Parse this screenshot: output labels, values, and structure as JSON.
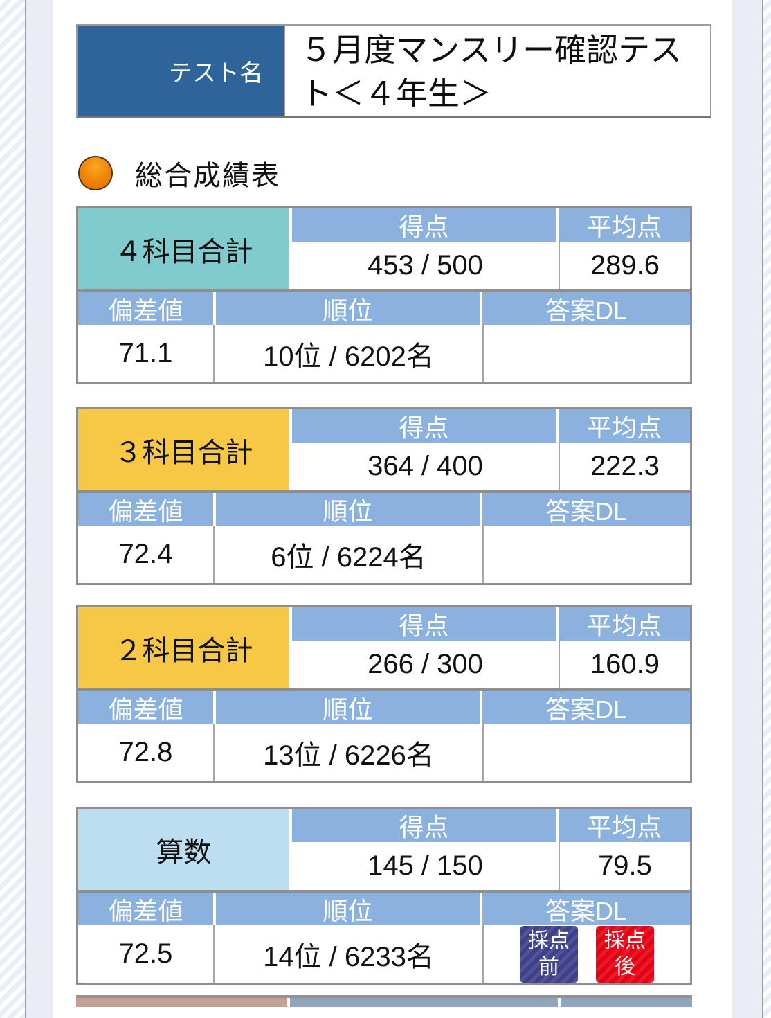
{
  "header": {
    "test_name_label": "テスト名",
    "test_name": "５月度マンスリー確認テスト＜４年生＞",
    "section_title": "総合成績表"
  },
  "labels": {
    "score": "得点",
    "average": "平均点",
    "deviation": "偏差値",
    "rank": "順位",
    "answer_dl": "答案DL"
  },
  "tables": [
    {
      "subject": "４科目合計",
      "subject_color": "#7fcbce",
      "score": "453 / 500",
      "average": "289.6",
      "deviation": "71.1",
      "rank": "10位 / 6202名",
      "buttons": []
    },
    {
      "subject": "３科目合計",
      "subject_color": "#f6c845",
      "score": "364 / 400",
      "average": "222.3",
      "deviation": "72.4",
      "rank": "6位 / 6224名",
      "buttons": []
    },
    {
      "subject": "２科目合計",
      "subject_color": "#f6c845",
      "score": "266 / 300",
      "average": "160.9",
      "deviation": "72.8",
      "rank": "13位 / 6226名",
      "buttons": []
    },
    {
      "subject": "算数",
      "subject_color": "#bdddf0",
      "score": "145 / 150",
      "average": "79.5",
      "deviation": "72.5",
      "rank": "14位 / 6233名",
      "buttons": [
        {
          "label": "採点前",
          "color": "#3f3f8c"
        },
        {
          "label": "採点後",
          "color": "#e60012"
        }
      ]
    }
  ],
  "colors": {
    "test_label_blue": "#2f649b",
    "table_header_blue": "#8bb2de",
    "subject_teal": "#7fcbce",
    "subject_yellow": "#f6c845",
    "subject_light_blue": "#bdddf0",
    "bullet_orange": "#ef8200",
    "button_navy": "#3f3f8c",
    "button_red": "#e60012",
    "table_border_gray": "#8e8e8e",
    "gutter_panel": "#eaedf4"
  }
}
